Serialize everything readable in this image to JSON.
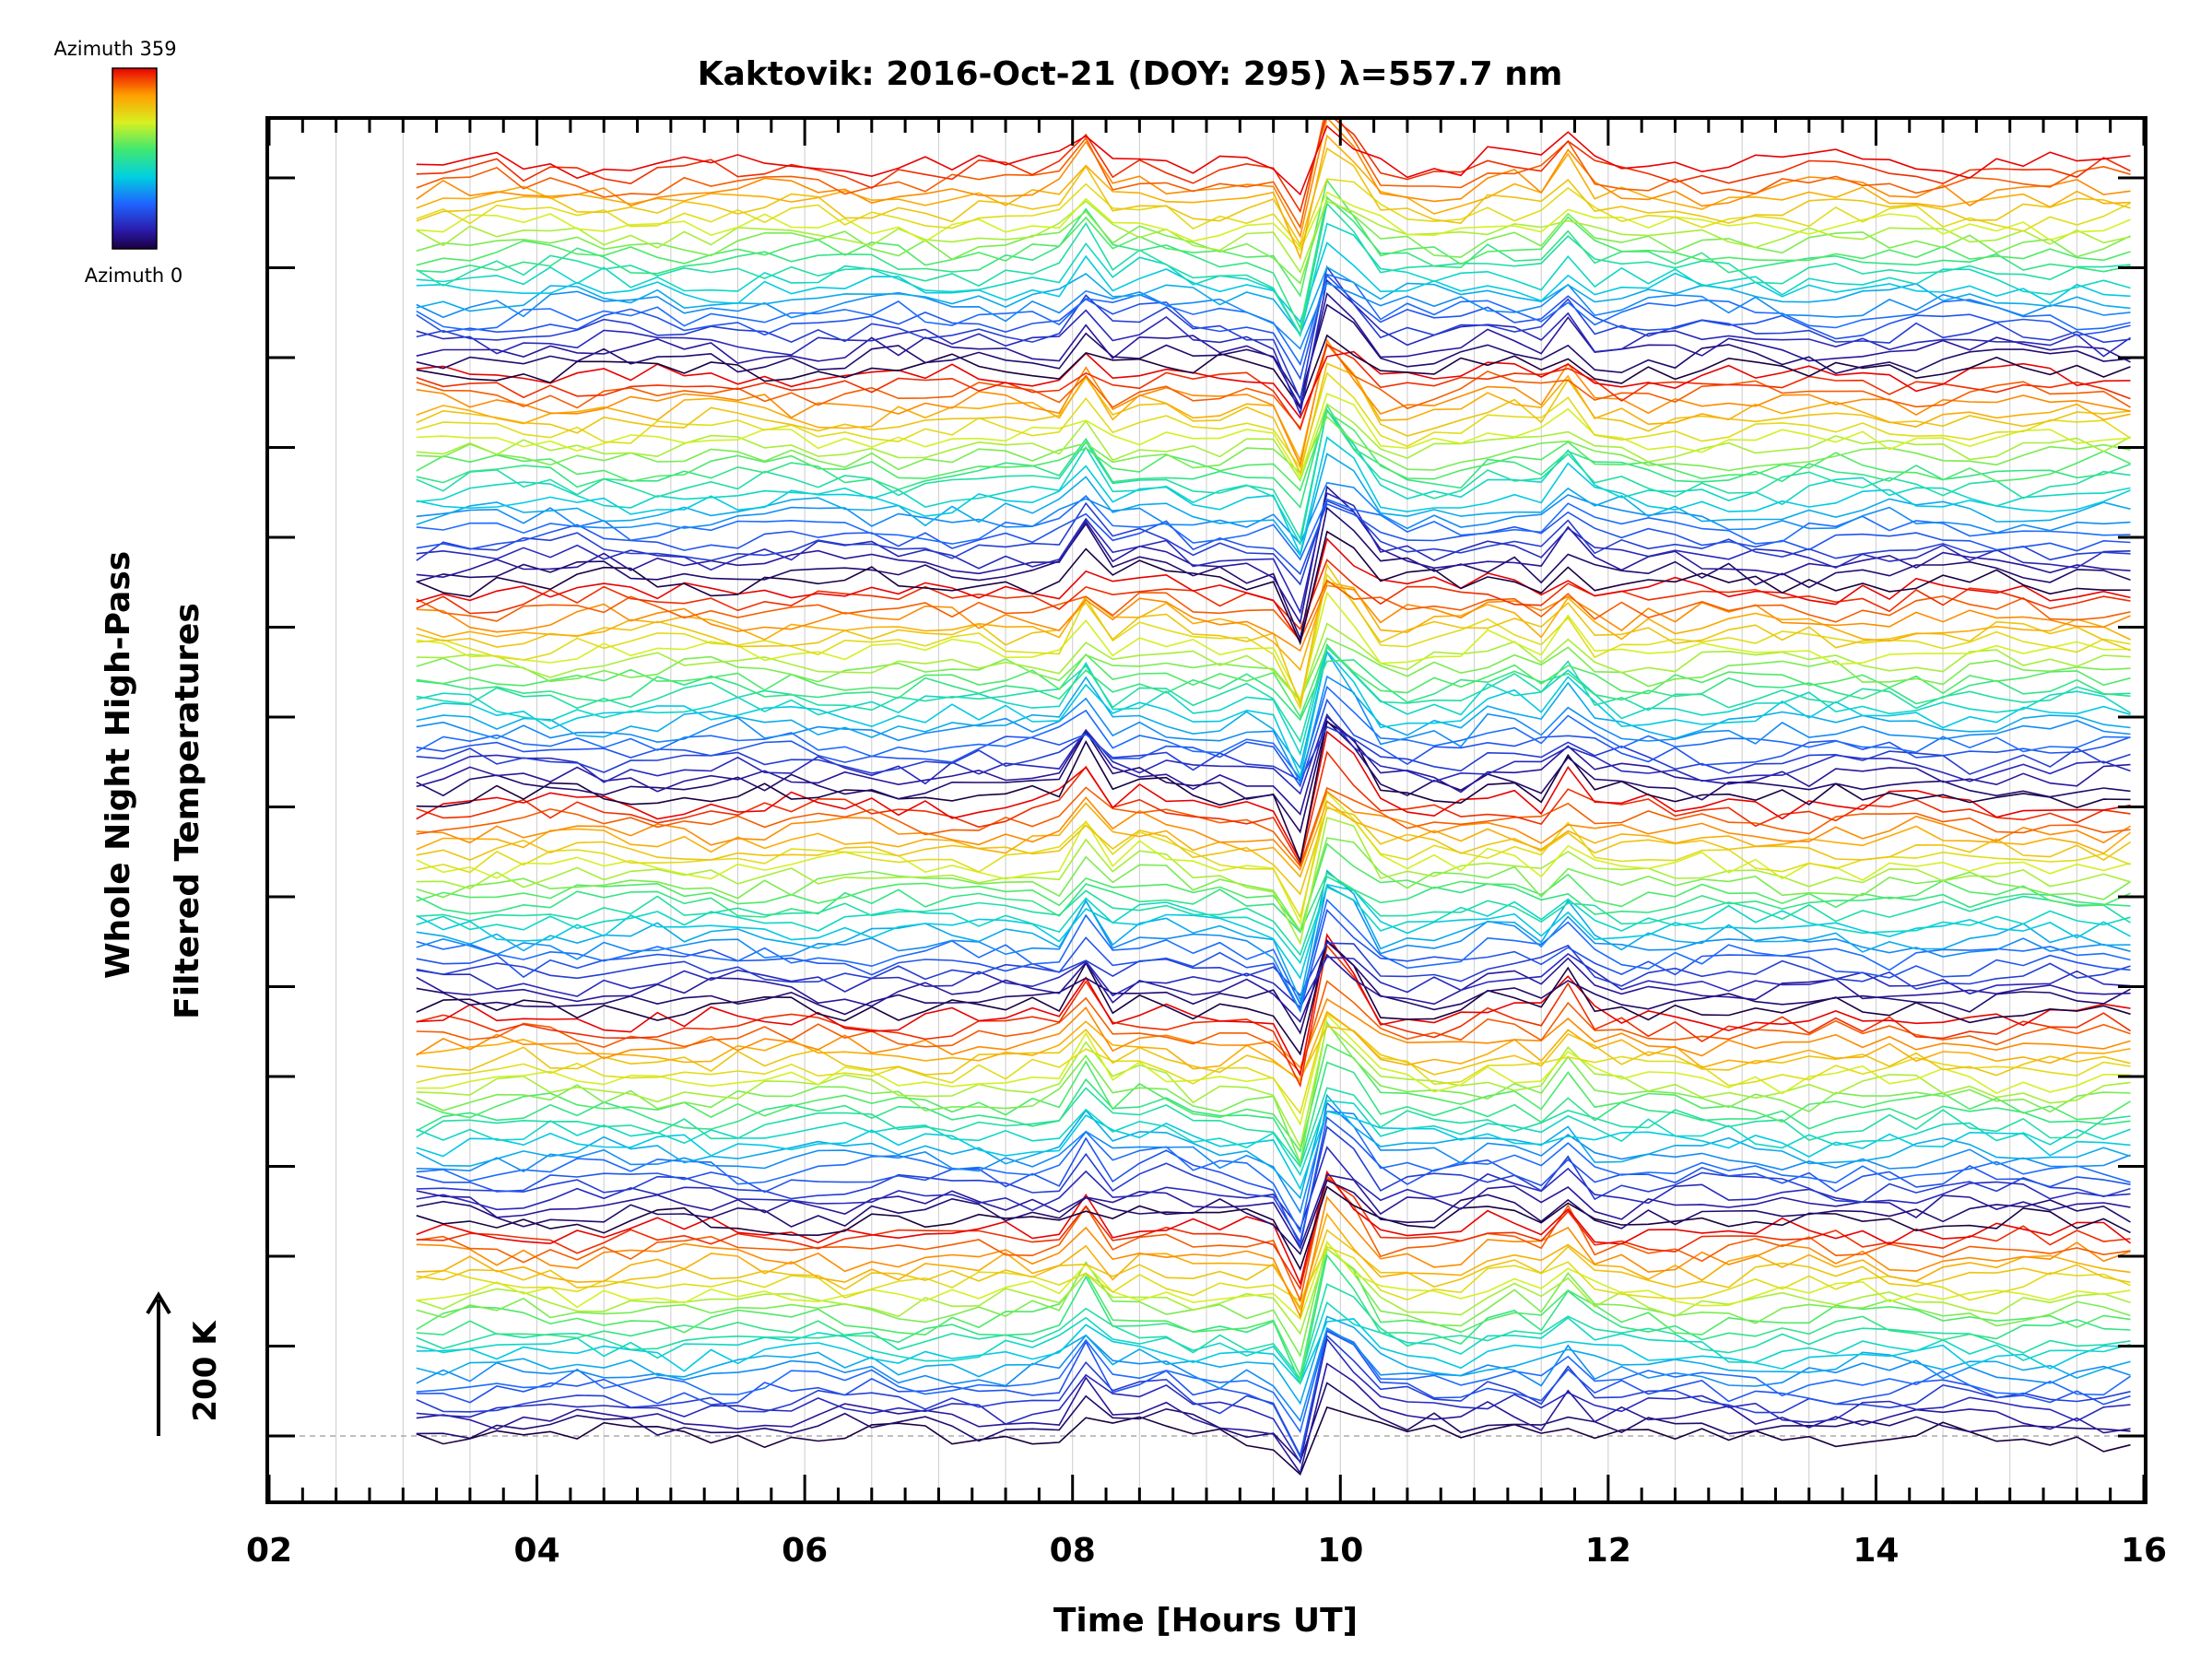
{
  "chart_data": {
    "type": "line",
    "title": "Kaktovik: 2016-Oct-21 (DOY: 295) λ=557.7 nm",
    "xlabel": "Time [Hours UT]",
    "ylabel_line1": "Whole Night High-Pass",
    "ylabel_line2": "Filtered Temperatures",
    "xlim": [
      2,
      16
    ],
    "x_ticks": [
      2,
      4,
      6,
      8,
      10,
      12,
      14,
      16
    ],
    "x_tick_labels": [
      "02",
      "04",
      "06",
      "08",
      "10",
      "12",
      "14",
      "16"
    ],
    "data_time_range": [
      3.1,
      15.9
    ],
    "data_interval_hours": 0.2,
    "grid": true,
    "colorbar": {
      "top_label": "Azimuth 359",
      "bottom_label": "Azimuth 0",
      "min": 0,
      "max": 359,
      "colormap": "rainbow"
    },
    "scale_bar_label": "200 K",
    "series_count": 144,
    "series_description": "Stacked high-pass filtered temperature traces, one per azimuth bin, offset vertically; baseline dashed at the lowest trace",
    "wave_events_hours": [
      8.1,
      8.6,
      9.7,
      9.9,
      10.1,
      11.2,
      11.7
    ],
    "colors": {
      "baseline": "#aaaaaa",
      "grid": "#cccccc",
      "axis": "#000000"
    }
  }
}
